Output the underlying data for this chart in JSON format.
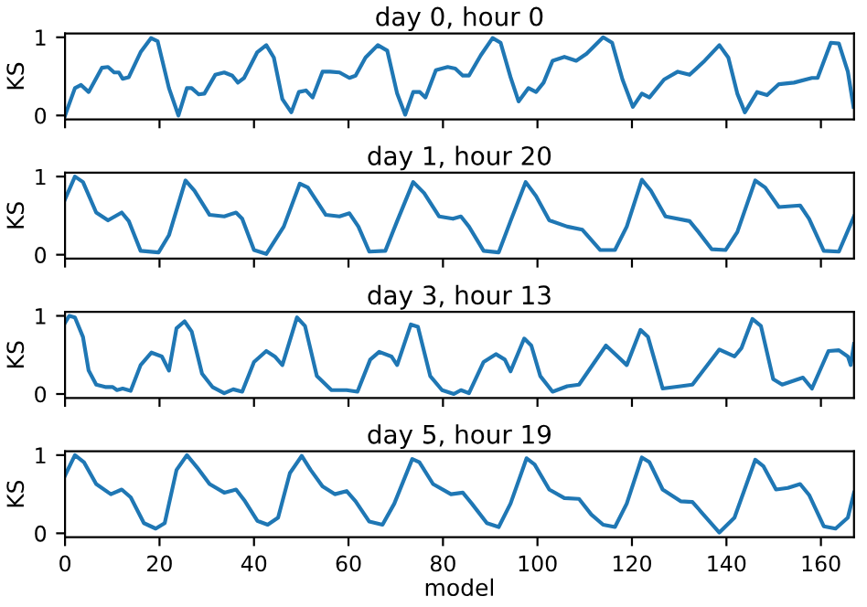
{
  "chart_data": [
    {
      "type": "line",
      "title": "day 0, hour 0",
      "ylabel": "KS",
      "xlim": [
        0,
        167
      ],
      "ylim": [
        -0.05,
        1.05
      ],
      "yticks": [
        0,
        1
      ],
      "xticks": [
        0,
        20,
        40,
        60,
        80,
        100,
        120,
        140,
        160
      ],
      "tick_labels": "y",
      "grid": false,
      "legend": false,
      "series": [
        {
          "color": "#1f77b4",
          "x": [
            0,
            2.1,
            3.4,
            5,
            7.8,
            9.1,
            10.4,
            11.4,
            12.2,
            13.5,
            16,
            18.2,
            19.6,
            22,
            24,
            25.8,
            26.8,
            28.3,
            29.5,
            31.8,
            33.7,
            35.4,
            36.6,
            37.9,
            40.7,
            42.6,
            44.2,
            46,
            47.9,
            49.5,
            51,
            52.4,
            54.5,
            56.1,
            58.1,
            60.2,
            61.5,
            63.6,
            66.2,
            68.2,
            70.3,
            72,
            73.7,
            75.1,
            76.3,
            78.5,
            81,
            82.6,
            84.2,
            85.5,
            88,
            90.5,
            92.2,
            94.3,
            96,
            98.1,
            99.7,
            101.3,
            103.2,
            105.7,
            108.2,
            110.4,
            113.9,
            115.8,
            118,
            120.2,
            122.1,
            123.7,
            126.8,
            129.7,
            132.2,
            135.4,
            138.5,
            140.4,
            142.3,
            143.9,
            146.5,
            148.6,
            151.1,
            154.3,
            158.1,
            159.3,
            162.1,
            163.8,
            165.7,
            166.9
          ],
          "values": [
            0.0,
            0.35,
            0.39,
            0.3,
            0.61,
            0.62,
            0.55,
            0.55,
            0.47,
            0.49,
            0.81,
            0.99,
            0.95,
            0.35,
            0.0,
            0.35,
            0.35,
            0.27,
            0.28,
            0.52,
            0.55,
            0.51,
            0.42,
            0.48,
            0.81,
            0.9,
            0.74,
            0.21,
            0.04,
            0.3,
            0.32,
            0.23,
            0.56,
            0.56,
            0.55,
            0.48,
            0.51,
            0.74,
            0.9,
            0.83,
            0.28,
            0.01,
            0.3,
            0.3,
            0.23,
            0.58,
            0.62,
            0.6,
            0.51,
            0.51,
            0.77,
            0.99,
            0.93,
            0.49,
            0.18,
            0.35,
            0.3,
            0.42,
            0.7,
            0.75,
            0.7,
            0.79,
            1.0,
            0.93,
            0.46,
            0.11,
            0.28,
            0.23,
            0.46,
            0.56,
            0.52,
            0.7,
            0.9,
            0.74,
            0.28,
            0.04,
            0.3,
            0.26,
            0.4,
            0.42,
            0.48,
            0.48,
            0.93,
            0.92,
            0.56,
            0.11
          ]
        }
      ]
    },
    {
      "type": "line",
      "title": "day 1, hour 20",
      "ylabel": "KS",
      "xlim": [
        0,
        167
      ],
      "ylim": [
        -0.05,
        1.05
      ],
      "yticks": [
        0,
        1
      ],
      "xticks": [
        0,
        20,
        40,
        60,
        80,
        100,
        120,
        140,
        160
      ],
      "tick_labels": "y",
      "grid": false,
      "legend": false,
      "series": [
        {
          "color": "#1f77b4",
          "x": [
            0,
            2.1,
            3.8,
            6.6,
            9.1,
            12,
            13.5,
            16,
            19.8,
            22,
            25.5,
            27.4,
            30.6,
            33.7,
            36.2,
            37.5,
            40,
            42.6,
            46.3,
            49.7,
            51.4,
            55.2,
            58.1,
            60.2,
            62.1,
            64.4,
            67.8,
            70.3,
            73.7,
            76,
            79.2,
            82.1,
            83.8,
            85.5,
            88.6,
            91.8,
            94.3,
            97.5,
            99.7,
            102.5,
            106.3,
            109.5,
            113.3,
            116.4,
            118.9,
            122.1,
            124,
            127.1,
            132.2,
            134.1,
            136.9,
            139.8,
            142.3,
            146.1,
            148.2,
            151.1,
            155.6,
            157.5,
            160.6,
            163.8,
            167
          ],
          "values": [
            0.71,
            1.0,
            0.93,
            0.54,
            0.44,
            0.54,
            0.43,
            0.05,
            0.03,
            0.25,
            0.95,
            0.82,
            0.51,
            0.49,
            0.54,
            0.46,
            0.06,
            0.01,
            0.36,
            0.91,
            0.86,
            0.51,
            0.49,
            0.53,
            0.36,
            0.04,
            0.05,
            0.43,
            0.93,
            0.79,
            0.49,
            0.46,
            0.49,
            0.36,
            0.05,
            0.03,
            0.43,
            0.93,
            0.75,
            0.44,
            0.36,
            0.32,
            0.06,
            0.06,
            0.36,
            0.96,
            0.82,
            0.49,
            0.43,
            0.29,
            0.07,
            0.06,
            0.29,
            0.95,
            0.86,
            0.61,
            0.63,
            0.46,
            0.05,
            0.04,
            0.49
          ]
        }
      ]
    },
    {
      "type": "line",
      "title": "day 3, hour 13",
      "ylabel": "KS",
      "xlim": [
        0,
        167
      ],
      "ylim": [
        -0.05,
        1.05
      ],
      "yticks": [
        0,
        1
      ],
      "xticks": [
        0,
        20,
        40,
        60,
        80,
        100,
        120,
        140,
        160
      ],
      "tick_labels": "y",
      "grid": false,
      "legend": false,
      "series": [
        {
          "color": "#1f77b4",
          "x": [
            0,
            0.9,
            2.1,
            3.8,
            5,
            6.6,
            8.5,
            10.1,
            11,
            12.2,
            13.9,
            16,
            18.3,
            20.5,
            22,
            23.6,
            25.3,
            26.8,
            29,
            31.2,
            33.7,
            35.6,
            37.5,
            40,
            42.6,
            44.4,
            46,
            49.1,
            50.8,
            53.3,
            56.4,
            59.6,
            61.9,
            64.6,
            66.5,
            69.1,
            70.3,
            73.2,
            74.7,
            77.3,
            79.8,
            82.3,
            83.8,
            85.5,
            88.6,
            91.2,
            93.1,
            94.3,
            97.2,
            98.7,
            100.6,
            103.2,
            106.3,
            108.8,
            114.5,
            117,
            118.9,
            121.8,
            123.4,
            126.5,
            130.3,
            132.8,
            138.5,
            141.7,
            143.2,
            145.5,
            147.3,
            149.9,
            151.8,
            156.2,
            158.1,
            161.6,
            163.8,
            165.7,
            166.3,
            167
          ],
          "values": [
            0.91,
            1.0,
            0.98,
            0.73,
            0.3,
            0.12,
            0.09,
            0.09,
            0.05,
            0.07,
            0.04,
            0.37,
            0.53,
            0.48,
            0.3,
            0.84,
            0.93,
            0.8,
            0.26,
            0.09,
            0.01,
            0.06,
            0.03,
            0.41,
            0.55,
            0.48,
            0.37,
            0.98,
            0.87,
            0.23,
            0.05,
            0.05,
            0.03,
            0.44,
            0.54,
            0.48,
            0.37,
            0.89,
            0.86,
            0.23,
            0.05,
            0.0,
            0.05,
            0.01,
            0.41,
            0.51,
            0.44,
            0.29,
            0.71,
            0.62,
            0.23,
            0.03,
            0.1,
            0.12,
            0.62,
            0.48,
            0.37,
            0.82,
            0.73,
            0.07,
            0.1,
            0.12,
            0.57,
            0.48,
            0.59,
            0.96,
            0.87,
            0.19,
            0.12,
            0.21,
            0.07,
            0.55,
            0.56,
            0.48,
            0.37,
            0.64
          ]
        }
      ]
    },
    {
      "type": "line",
      "title": "day 5, hour 19",
      "xlabel": "model",
      "ylabel": "KS",
      "xlim": [
        0,
        167
      ],
      "ylim": [
        -0.05,
        1.05
      ],
      "yticks": [
        0,
        1
      ],
      "xticks": [
        0,
        20,
        40,
        60,
        80,
        100,
        120,
        140,
        160
      ],
      "grid": false,
      "legend": false,
      "series": [
        {
          "color": "#1f77b4",
          "x": [
            0,
            2.1,
            4,
            6.6,
            9.7,
            12,
            13.9,
            16.7,
            19.2,
            21.1,
            23.6,
            25.8,
            28,
            30.6,
            33.7,
            36.2,
            38.1,
            40.7,
            42.9,
            45.1,
            47.6,
            50.1,
            52,
            54.5,
            57.1,
            59.6,
            61.5,
            64.4,
            67.2,
            69.7,
            73.5,
            75,
            77.9,
            81.7,
            84.2,
            86.1,
            89.3,
            91.8,
            94.3,
            97.7,
            99.4,
            102.5,
            105.7,
            108.8,
            111.4,
            113.9,
            116.4,
            118.9,
            122.1,
            123.7,
            126.5,
            130.3,
            132.8,
            134.7,
            138.5,
            141.7,
            146.1,
            147.8,
            150.5,
            153,
            155.6,
            157.5,
            160.6,
            163.1,
            165.7,
            167
          ],
          "values": [
            0.74,
            1.0,
            0.91,
            0.63,
            0.5,
            0.56,
            0.46,
            0.13,
            0.06,
            0.13,
            0.81,
            1.0,
            0.84,
            0.63,
            0.52,
            0.56,
            0.41,
            0.16,
            0.11,
            0.2,
            0.77,
            0.99,
            0.81,
            0.6,
            0.5,
            0.54,
            0.41,
            0.15,
            0.11,
            0.38,
            0.95,
            0.91,
            0.63,
            0.5,
            0.52,
            0.38,
            0.13,
            0.08,
            0.38,
            0.96,
            0.88,
            0.56,
            0.45,
            0.44,
            0.24,
            0.11,
            0.08,
            0.38,
            0.97,
            0.91,
            0.56,
            0.41,
            0.4,
            0.27,
            0.01,
            0.2,
            0.94,
            0.86,
            0.56,
            0.58,
            0.63,
            0.49,
            0.09,
            0.06,
            0.2,
            0.52
          ]
        }
      ]
    }
  ]
}
